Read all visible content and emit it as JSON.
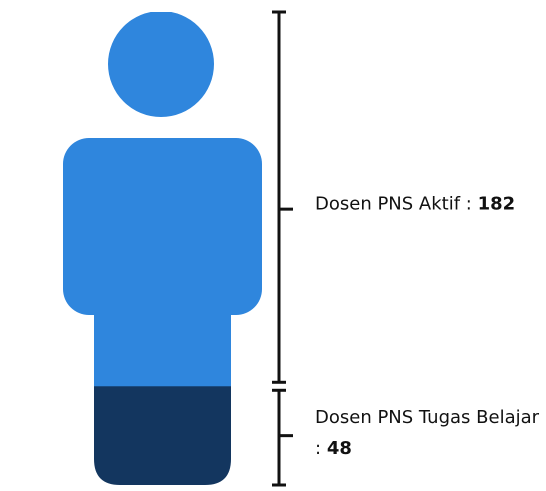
{
  "chart_data": {
    "type": "pictogram",
    "categories": [
      "Dosen PNS Aktif :",
      "Dosen PNS Tugas Belajar :"
    ],
    "values": [
      182,
      48
    ],
    "colors": [
      "#2f86dd",
      "#13365f"
    ]
  }
}
